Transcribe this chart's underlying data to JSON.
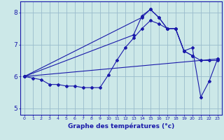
{
  "xlabel": "Graphe des températures (°c)",
  "background_color": "#cce8e8",
  "line_color": "#1a1aaa",
  "grid_color": "#99bbcc",
  "axis_label_color": "#1a1aaa",
  "tick_label_color": "#1a1aaa",
  "xlim": [
    -0.5,
    23.5
  ],
  "ylim": [
    4.8,
    8.35
  ],
  "yticks": [
    5,
    6,
    7,
    8
  ],
  "xticks": [
    0,
    1,
    2,
    3,
    4,
    5,
    6,
    7,
    8,
    9,
    10,
    11,
    12,
    13,
    14,
    15,
    16,
    17,
    18,
    19,
    20,
    21,
    22,
    23
  ],
  "series": [
    {
      "x": [
        0,
        1,
        2,
        3,
        4,
        5,
        6,
        7,
        8,
        9,
        10,
        11,
        12,
        13,
        14,
        15,
        16,
        17,
        18,
        19,
        20,
        21,
        22,
        23
      ],
      "y": [
        6.0,
        5.95,
        5.9,
        5.75,
        5.75,
        5.7,
        5.7,
        5.65,
        5.65,
        5.65,
        6.05,
        6.5,
        6.9,
        7.2,
        7.5,
        7.75,
        7.65,
        7.5,
        7.5,
        6.8,
        6.65,
        6.5,
        6.5,
        6.5
      ]
    },
    {
      "x": [
        0,
        23
      ],
      "y": [
        6.0,
        6.55
      ]
    },
    {
      "x": [
        0,
        13,
        14,
        15,
        16,
        17,
        18,
        19,
        20
      ],
      "y": [
        6.0,
        7.3,
        7.9,
        8.1,
        7.85,
        7.5,
        7.5,
        6.8,
        6.65
      ]
    },
    {
      "x": [
        0,
        14,
        15,
        16,
        17,
        18,
        19,
        20,
        21,
        22,
        23
      ],
      "y": [
        6.0,
        7.85,
        8.1,
        7.85,
        7.5,
        7.5,
        6.8,
        6.9,
        5.35,
        5.85,
        6.55
      ]
    }
  ]
}
